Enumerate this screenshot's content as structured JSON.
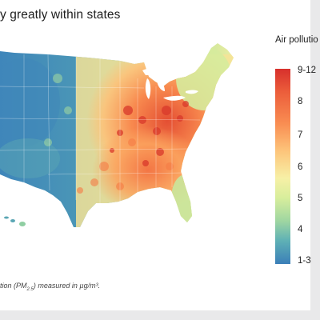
{
  "header": {
    "title": "y greatly within states"
  },
  "legend": {
    "title": "Air pollutio",
    "ticks": [
      "9-12",
      "8",
      "7",
      "6",
      "5",
      "4",
      "1-3"
    ],
    "colors": [
      "#d7302c",
      "#f98d52",
      "#fdc47a",
      "#f7f0a6",
      "#d8ee9c",
      "#9fd6a1",
      "#3b7fb8"
    ]
  },
  "caption": {
    "prefix": "tion (PM",
    "sub": "2.5",
    "suffix": ") measured in µg/m³."
  },
  "map": {
    "palette": {
      "low": "#3f86ba",
      "mid_low": "#8fcea2",
      "mid": "#f2ec9e",
      "mid_high": "#fbb567",
      "high": "#e44f33",
      "water": "#ffffff"
    }
  }
}
